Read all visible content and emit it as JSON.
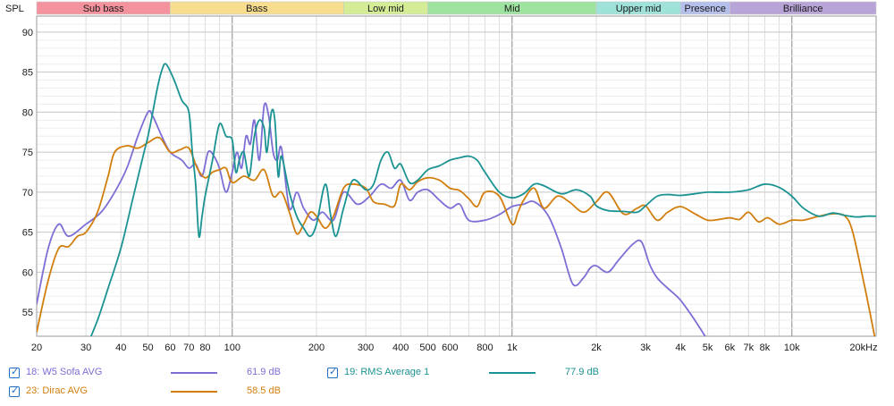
{
  "chart_data": {
    "type": "line",
    "ylabel": "SPL",
    "x_scale": "log",
    "xlim": [
      20,
      20000
    ],
    "ylim": [
      52,
      92
    ],
    "y_ticks": [
      55,
      60,
      65,
      70,
      75,
      80,
      85,
      90
    ],
    "x_ticks": [
      {
        "v": 20,
        "label": "20"
      },
      {
        "v": 30,
        "label": "30"
      },
      {
        "v": 40,
        "label": "40"
      },
      {
        "v": 50,
        "label": "50"
      },
      {
        "v": 60,
        "label": "60"
      },
      {
        "v": 70,
        "label": "70"
      },
      {
        "v": 80,
        "label": "80"
      },
      {
        "v": 100,
        "label": "100"
      },
      {
        "v": 200,
        "label": "200"
      },
      {
        "v": 300,
        "label": "300"
      },
      {
        "v": 400,
        "label": "400"
      },
      {
        "v": 500,
        "label": "500"
      },
      {
        "v": 600,
        "label": "600"
      },
      {
        "v": 800,
        "label": "800"
      },
      {
        "v": 1000,
        "label": "1k"
      },
      {
        "v": 2000,
        "label": "2k"
      },
      {
        "v": 3000,
        "label": "3k"
      },
      {
        "v": 4000,
        "label": "4k"
      },
      {
        "v": 5000,
        "label": "5k"
      },
      {
        "v": 6000,
        "label": "6k"
      },
      {
        "v": 7000,
        "label": "7k"
      },
      {
        "v": 8000,
        "label": "8k"
      },
      {
        "v": 10000,
        "label": "10k"
      },
      {
        "v": 20000,
        "label": "20kHz"
      }
    ],
    "bands": [
      {
        "label": "Sub bass",
        "from": 20,
        "to": 60,
        "color": "#f4939d"
      },
      {
        "label": "Bass",
        "from": 60,
        "to": 250,
        "color": "#f8dd8f"
      },
      {
        "label": "Low mid",
        "from": 250,
        "to": 500,
        "color": "#d4ec96"
      },
      {
        "label": "Mid",
        "from": 500,
        "to": 2000,
        "color": "#9fe3a1"
      },
      {
        "label": "Upper mid",
        "from": 2000,
        "to": 4000,
        "color": "#9ee2da"
      },
      {
        "label": "Presence",
        "from": 4000,
        "to": 6000,
        "color": "#b5bfeb"
      },
      {
        "label": "Brilliance",
        "from": 6000,
        "to": 20000,
        "color": "#b9a4d8"
      }
    ],
    "series": [
      {
        "name": "18: W5 Sofa AVG",
        "color": "#7b6fd6",
        "legend_value": "61.9 dB",
        "points": [
          [
            20,
            56
          ],
          [
            22,
            63
          ],
          [
            24,
            66
          ],
          [
            26,
            64.5
          ],
          [
            30,
            66
          ],
          [
            34,
            67.5
          ],
          [
            38,
            70
          ],
          [
            42,
            73
          ],
          [
            46,
            77
          ],
          [
            50,
            80
          ],
          [
            52,
            79.5
          ],
          [
            56,
            77
          ],
          [
            60,
            75
          ],
          [
            66,
            74
          ],
          [
            70,
            73
          ],
          [
            74,
            73.5
          ],
          [
            78,
            72
          ],
          [
            82,
            75
          ],
          [
            86,
            74.5
          ],
          [
            90,
            73
          ],
          [
            95,
            70
          ],
          [
            100,
            72.5
          ],
          [
            104,
            75
          ],
          [
            108,
            73
          ],
          [
            112,
            77
          ],
          [
            116,
            76
          ],
          [
            120,
            79
          ],
          [
            125,
            74
          ],
          [
            130,
            80.8
          ],
          [
            135,
            79.5
          ],
          [
            140,
            75
          ],
          [
            145,
            74
          ],
          [
            150,
            75.5
          ],
          [
            160,
            68
          ],
          [
            170,
            70
          ],
          [
            180,
            68
          ],
          [
            195,
            66.5
          ],
          [
            210,
            67.5
          ],
          [
            230,
            66.5
          ],
          [
            250,
            70
          ],
          [
            280,
            68.5
          ],
          [
            310,
            69.5
          ],
          [
            340,
            71
          ],
          [
            370,
            70.5
          ],
          [
            400,
            71.5
          ],
          [
            430,
            69
          ],
          [
            460,
            70
          ],
          [
            500,
            70.3
          ],
          [
            550,
            69
          ],
          [
            600,
            68
          ],
          [
            650,
            68.5
          ],
          [
            700,
            66.5
          ],
          [
            800,
            66.5
          ],
          [
            900,
            67.2
          ],
          [
            1000,
            68.2
          ],
          [
            1100,
            68.5
          ],
          [
            1200,
            68.8
          ],
          [
            1350,
            67
          ],
          [
            1500,
            63
          ],
          [
            1650,
            58.5
          ],
          [
            1800,
            59.3
          ],
          [
            1900,
            60.5
          ],
          [
            2000,
            60.8
          ],
          [
            2200,
            60
          ],
          [
            2400,
            61.5
          ],
          [
            2700,
            63.5
          ],
          [
            2900,
            63.8
          ],
          [
            3100,
            61
          ],
          [
            3300,
            59.3
          ],
          [
            3600,
            58
          ],
          [
            4000,
            56.5
          ],
          [
            4500,
            54
          ],
          [
            5000,
            51.5
          ],
          [
            5300,
            50
          ],
          [
            6000,
            47
          ]
        ]
      },
      {
        "name": "23: Dirac AVG",
        "color": "#d27e0d",
        "legend_value": "58.5 dB",
        "points": [
          [
            20,
            52.5
          ],
          [
            22,
            59
          ],
          [
            24,
            63
          ],
          [
            26,
            63.2
          ],
          [
            28,
            64.5
          ],
          [
            30,
            65
          ],
          [
            33,
            67.5
          ],
          [
            36,
            72
          ],
          [
            38,
            75
          ],
          [
            42,
            75.8
          ],
          [
            46,
            75.5
          ],
          [
            50,
            76.2
          ],
          [
            55,
            76.8
          ],
          [
            60,
            75
          ],
          [
            65,
            75.3
          ],
          [
            70,
            75.5
          ],
          [
            75,
            73
          ],
          [
            80,
            71.8
          ],
          [
            85,
            72.5
          ],
          [
            90,
            72.8
          ],
          [
            95,
            73
          ],
          [
            100,
            71.2
          ],
          [
            110,
            72
          ],
          [
            120,
            71.5
          ],
          [
            130,
            72.8
          ],
          [
            140,
            69.5
          ],
          [
            150,
            70
          ],
          [
            160,
            67.5
          ],
          [
            170,
            64.8
          ],
          [
            180,
            66
          ],
          [
            190,
            67.5
          ],
          [
            200,
            67
          ],
          [
            215,
            65.5
          ],
          [
            230,
            67
          ],
          [
            250,
            70.5
          ],
          [
            270,
            71
          ],
          [
            300,
            70.5
          ],
          [
            320,
            68.8
          ],
          [
            350,
            68.5
          ],
          [
            380,
            68.3
          ],
          [
            400,
            71
          ],
          [
            430,
            70.3
          ],
          [
            460,
            71.3
          ],
          [
            500,
            71.8
          ],
          [
            550,
            71.5
          ],
          [
            600,
            70.5
          ],
          [
            650,
            70.2
          ],
          [
            700,
            69.2
          ],
          [
            750,
            68.2
          ],
          [
            800,
            70
          ],
          [
            900,
            69.5
          ],
          [
            1000,
            66
          ],
          [
            1050,
            67.5
          ],
          [
            1100,
            69
          ],
          [
            1200,
            70.5
          ],
          [
            1300,
            68
          ],
          [
            1450,
            69.5
          ],
          [
            1600,
            68.8
          ],
          [
            1800,
            67.5
          ],
          [
            2000,
            68.8
          ],
          [
            2200,
            70
          ],
          [
            2500,
            67.3
          ],
          [
            2800,
            68
          ],
          [
            3000,
            68.3
          ],
          [
            3300,
            66.5
          ],
          [
            3600,
            67.5
          ],
          [
            4000,
            68.2
          ],
          [
            4500,
            67.3
          ],
          [
            5000,
            66.5
          ],
          [
            5500,
            66.6
          ],
          [
            6000,
            66.8
          ],
          [
            6500,
            66.6
          ],
          [
            7000,
            67.5
          ],
          [
            7600,
            66.3
          ],
          [
            8200,
            66.8
          ],
          [
            9000,
            66
          ],
          [
            10000,
            66.5
          ],
          [
            11000,
            66.5
          ],
          [
            12500,
            67
          ],
          [
            14000,
            67.3
          ],
          [
            15500,
            67
          ],
          [
            16500,
            65
          ],
          [
            18000,
            59
          ],
          [
            19000,
            55
          ],
          [
            20000,
            51
          ]
        ]
      },
      {
        "name": "19: RMS Average 1",
        "color": "#1b9392",
        "legend_value": "77.9 dB",
        "points": [
          [
            30,
            50.5
          ],
          [
            33,
            54
          ],
          [
            36,
            58
          ],
          [
            40,
            63
          ],
          [
            44,
            69
          ],
          [
            48,
            74.5
          ],
          [
            50,
            77
          ],
          [
            52,
            80
          ],
          [
            54,
            83
          ],
          [
            56,
            85.2
          ],
          [
            58,
            86
          ],
          [
            62,
            84
          ],
          [
            66,
            81.5
          ],
          [
            70,
            80
          ],
          [
            72,
            75
          ],
          [
            74,
            71
          ],
          [
            76,
            64.5
          ],
          [
            78,
            67
          ],
          [
            80,
            69.5
          ],
          [
            85,
            74
          ],
          [
            90,
            78.5
          ],
          [
            95,
            77
          ],
          [
            100,
            76.5
          ],
          [
            103,
            72.5
          ],
          [
            106,
            74
          ],
          [
            110,
            75
          ],
          [
            115,
            72
          ],
          [
            120,
            77
          ],
          [
            125,
            79
          ],
          [
            130,
            78
          ],
          [
            133,
            75
          ],
          [
            138,
            80
          ],
          [
            142,
            79
          ],
          [
            146,
            72
          ],
          [
            150,
            74.5
          ],
          [
            160,
            70
          ],
          [
            170,
            67
          ],
          [
            180,
            65.5
          ],
          [
            190,
            64.5
          ],
          [
            200,
            66
          ],
          [
            215,
            71
          ],
          [
            225,
            67
          ],
          [
            235,
            64.5
          ],
          [
            250,
            68
          ],
          [
            270,
            71.5
          ],
          [
            300,
            70.3
          ],
          [
            320,
            71
          ],
          [
            340,
            74
          ],
          [
            360,
            75
          ],
          [
            380,
            73
          ],
          [
            400,
            73.5
          ],
          [
            430,
            71.2
          ],
          [
            460,
            71.5
          ],
          [
            500,
            72.8
          ],
          [
            550,
            73.3
          ],
          [
            600,
            74
          ],
          [
            650,
            74.3
          ],
          [
            700,
            74.5
          ],
          [
            750,
            74
          ],
          [
            800,
            72.5
          ],
          [
            900,
            70
          ],
          [
            1000,
            69.3
          ],
          [
            1100,
            69.8
          ],
          [
            1200,
            71
          ],
          [
            1300,
            70.8
          ],
          [
            1500,
            69.8
          ],
          [
            1700,
            70.3
          ],
          [
            1900,
            69.5
          ],
          [
            2000,
            68.3
          ],
          [
            2200,
            67.7
          ],
          [
            2500,
            67.6
          ],
          [
            2800,
            67.5
          ],
          [
            3000,
            68.3
          ],
          [
            3300,
            69.5
          ],
          [
            3600,
            69.7
          ],
          [
            4000,
            69.6
          ],
          [
            4500,
            69.8
          ],
          [
            5000,
            70
          ],
          [
            6000,
            70
          ],
          [
            7000,
            70.3
          ],
          [
            8000,
            71
          ],
          [
            9000,
            70.6
          ],
          [
            10000,
            69.5
          ],
          [
            11000,
            68
          ],
          [
            12500,
            67
          ],
          [
            14000,
            67.4
          ],
          [
            15500,
            67.1
          ],
          [
            17000,
            66.9
          ],
          [
            18500,
            67
          ],
          [
            20000,
            67
          ]
        ]
      }
    ]
  }
}
